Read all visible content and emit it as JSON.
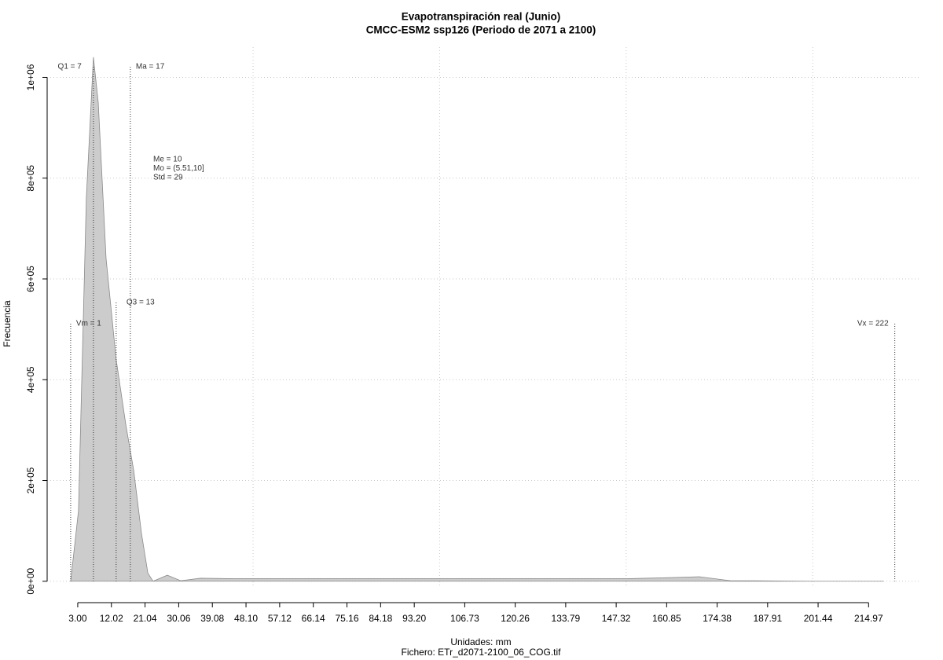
{
  "chart_data": {
    "type": "area",
    "title": "Evapotranspiración real (Junio)",
    "subtitle": "CMCC-ESM2 ssp126 (Periodo de 2071 a 2100)",
    "x_label": "Unidades: mm",
    "caption": "Fichero: ETr_d2071-2100_06_COG.tif",
    "y_label": "Frecuencia",
    "color": "#cccccc",
    "x": [
      1.1,
      3.2,
      5.3,
      7.2,
      8.5,
      10.6,
      13.3,
      15.9,
      18,
      20.1,
      21.8,
      23.2,
      27,
      30.6,
      35.9,
      45,
      80,
      120,
      150,
      160.8,
      169.6,
      178,
      184.4,
      200,
      219
    ],
    "values": [
      0,
      140000,
      760000,
      1040000,
      950000,
      640000,
      440000,
      310000,
      220000,
      94000,
      16000,
      0,
      12000,
      1000,
      6000,
      5000,
      5000,
      5000,
      5000,
      7000,
      9000,
      1000,
      1000,
      0,
      0
    ],
    "xlim": [
      -5.2,
      228.6
    ],
    "ylim": [
      -44000,
      1060000
    ],
    "xticks": [
      {
        "value": 3,
        "label": "3.00"
      },
      12.02,
      21.04,
      30.06,
      39.08,
      {
        "value": 48.1,
        "label": "48.10"
      },
      57.12,
      66.14,
      75.16,
      84.18,
      {
        "value": 93.2,
        "label": "93.20"
      },
      106.73,
      120.26,
      133.79,
      147.32,
      160.85,
      174.38,
      187.91,
      201.44,
      214.97
    ],
    "yticks": [
      {
        "value": 0,
        "label": "0e+00"
      },
      {
        "value": 200000,
        "label": "2e+05"
      },
      {
        "value": 400000,
        "label": "4e+05"
      },
      {
        "value": 600000,
        "label": "6e+05"
      },
      {
        "value": 800000,
        "label": "8e+05"
      },
      {
        "value": 1000000,
        "label": "1e+06"
      }
    ],
    "xgrid": [
      50,
      100,
      150,
      200
    ],
    "grid": true,
    "markers": [
      {
        "label": "Q1 = 7",
        "value": 7.2
      },
      {
        "label": "Ma = 17",
        "value": 17.1
      },
      {
        "label": "Q3 = 13",
        "value": 13.3
      },
      {
        "label": "Vm = 1",
        "value": 1.1
      },
      {
        "label": "Vx = 222",
        "value": 222
      }
    ],
    "stats": [
      "Me = 10",
      "Mo = (5.51,10]",
      "Std = 29"
    ]
  }
}
